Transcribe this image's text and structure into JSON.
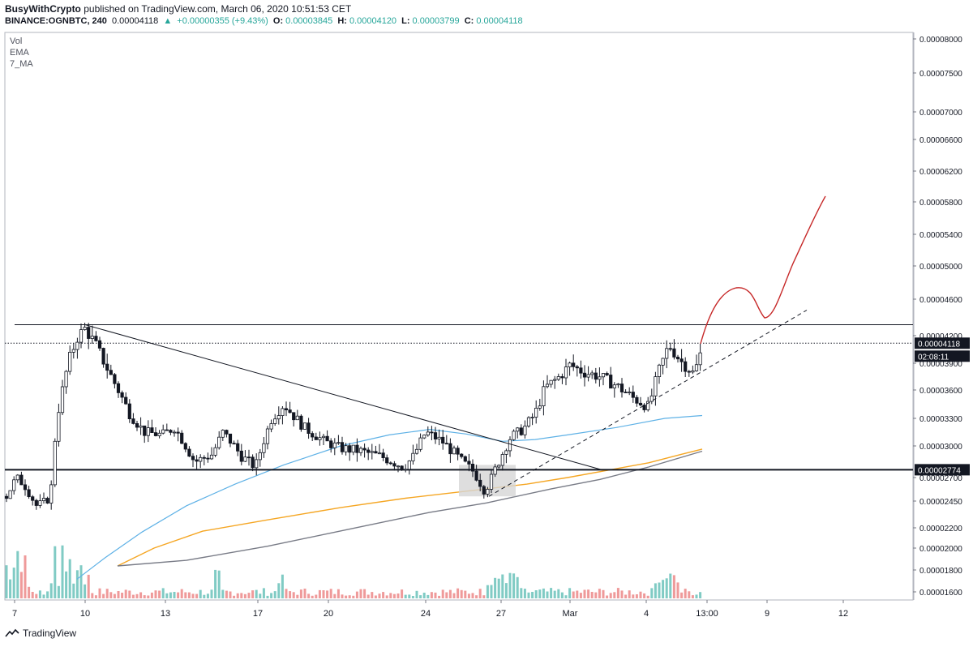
{
  "header": {
    "author": "BusyWithCrypto",
    "published_text": "published on TradingView.com, March 06, 2020 10:51:53 CET",
    "symbol": "BINANCE:OGNBTC, 240",
    "last": "0.00004118",
    "change": "+0.00000355 (+9.43%)",
    "o_label": "O:",
    "o_value": "0.00003845",
    "h_label": "H:",
    "h_value": "0.00004120",
    "l_label": "L:",
    "l_value": "0.00003799",
    "c_label": "C:",
    "c_value": "0.00004118"
  },
  "legend": [
    "Vol",
    "EMA",
    "7_MA"
  ],
  "footer": {
    "brand": "TradingView"
  },
  "colors": {
    "up": "#26a69a",
    "candle_up": "#ffffff",
    "candle_down": "#131722",
    "ema_blue": "#5eb1e6",
    "ema_orange": "#f5a623",
    "ma_gray": "#787b86",
    "projection": "#c62828",
    "vol_up": "#80cbc4",
    "vol_down": "#ef9a9a"
  },
  "chart_data": {
    "type": "candlestick",
    "y_ticks": [
      "0.00008000",
      "0.00007500",
      "0.00007000",
      "0.00006600",
      "0.00006200",
      "0.00005800",
      "0.00005400",
      "0.00005000",
      "0.00004600",
      "0.00004200",
      "0.00003900",
      "0.00003600",
      "0.00003300",
      "0.00003000",
      "0.00002700",
      "0.00002450",
      "0.00002200",
      "0.00002000",
      "0.00001800",
      "0.00001600"
    ],
    "x_ticks": [
      "7",
      "10",
      "13",
      "17",
      "20",
      "24",
      "27",
      "Mar",
      "4",
      "13:00",
      "9",
      "12"
    ],
    "price_badge": "0.00004118",
    "countdown": "02:08:11",
    "support_badge": "0.00002774",
    "resistance": 4.32e-05,
    "support": 2.774e-05,
    "ylim": [
      1.55e-05,
      8.15e-05
    ],
    "grid": false
  }
}
